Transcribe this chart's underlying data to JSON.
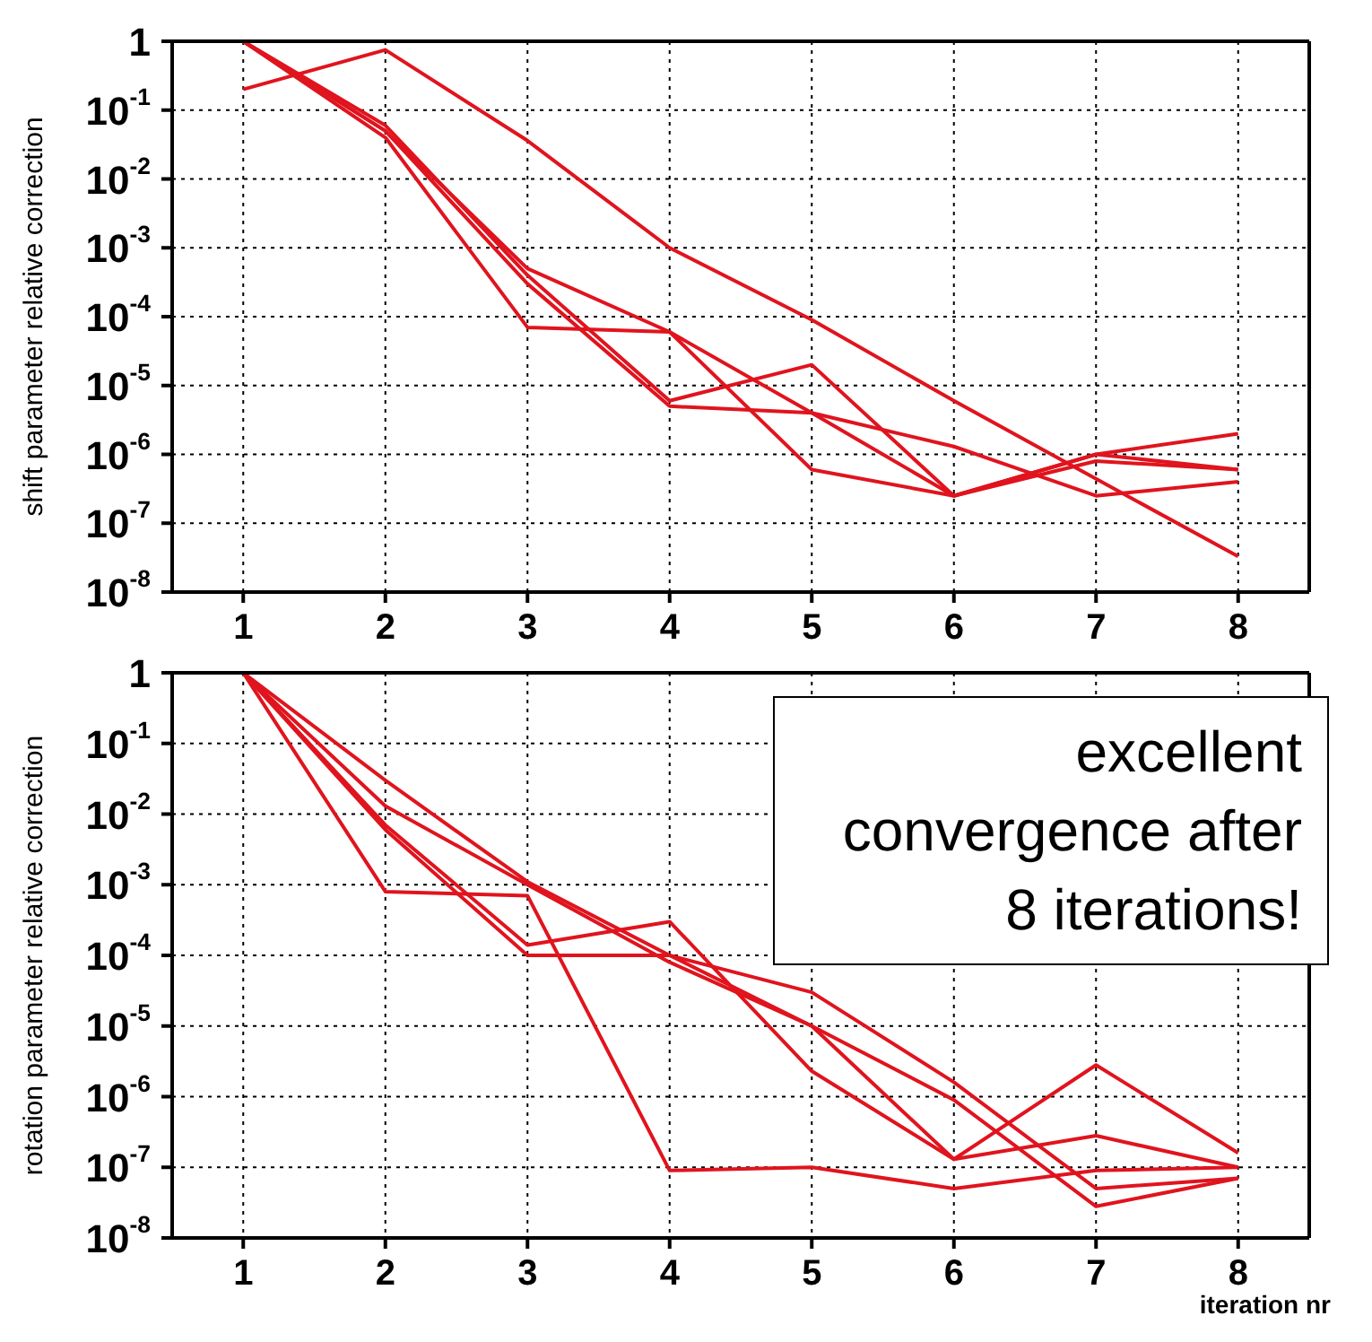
{
  "chart_data": [
    {
      "type": "line",
      "ylabel": "shift parameter relative correction",
      "x": [
        1,
        2,
        3,
        4,
        5,
        6,
        7,
        8
      ],
      "series": [
        {
          "color": "#e0141e",
          "values": [
            0.2,
            0.75,
            0.036,
            0.001,
            9e-05,
            6e-06,
            4.4e-07,
            3.3e-08
          ]
        },
        {
          "color": "#e0141e",
          "values": [
            1,
            0.05,
            0.0005,
            6e-05,
            4e-06,
            2.5e-07,
            1e-06,
            2e-06
          ]
        },
        {
          "color": "#e0141e",
          "values": [
            1,
            0.04,
            7e-05,
            6e-05,
            6e-07,
            2.5e-07,
            8e-07,
            6e-07
          ]
        },
        {
          "color": "#e0141e",
          "values": [
            1,
            0.06,
            0.0004,
            6e-06,
            2e-05,
            2.5e-07,
            1e-06,
            6e-07
          ]
        },
        {
          "color": "#e0141e",
          "values": [
            1,
            0.05,
            0.0003,
            5e-06,
            4e-06,
            1.3e-06,
            2.5e-07,
            4e-07
          ]
        }
      ],
      "xlim": [
        0.5,
        8.5
      ],
      "xticks": [
        1,
        2,
        3,
        4,
        5,
        6,
        7,
        8
      ],
      "ylim": [
        1e-08,
        1
      ],
      "yticks": [
        1,
        {
          "value": 0.1,
          "label": "10$^{-1}$"
        },
        {
          "value": 0.01,
          "label": "10$^{-2}$"
        },
        {
          "value": 0.001,
          "label": "10$^{-3}$"
        },
        {
          "value": 0.0001,
          "label": "10$^{-4}$"
        },
        {
          "value": 1e-05,
          "label": "10$^{-5}$"
        },
        {
          "value": 1e-06,
          "label": "10$^{-6}$"
        },
        {
          "value": 1e-07,
          "label": "10$^{-7}$"
        },
        {
          "value": 1e-08,
          "label": "10$^{-8}$"
        }
      ],
      "log": true,
      "grid": true,
      "marker": "none",
      "line_style": "solid"
    },
    {
      "type": "line",
      "ylabel": "rotation parameter relative correction",
      "xlabel": "iteration nr",
      "x": [
        1,
        2,
        3,
        4,
        5,
        6,
        7,
        8
      ],
      "series": [
        {
          "color": "#e0141e",
          "values": [
            1,
            0.0008,
            0.0007,
            9e-08,
            1e-07,
            5e-08,
            9e-08,
            1e-07
          ]
        },
        {
          "color": "#e0141e",
          "values": [
            1,
            0.03,
            0.0011,
            0.0001,
            3e-05,
            1.6e-06,
            5e-08,
            7e-08
          ]
        },
        {
          "color": "#e0141e",
          "values": [
            1,
            0.007,
            0.00014,
            0.0003,
            2.3e-06,
            1.3e-07,
            2.8e-06,
            1.6e-07
          ]
        },
        {
          "color": "#e0141e",
          "values": [
            1,
            0.013,
            0.001,
            8e-05,
            1e-05,
            9e-07,
            2.8e-08,
            7e-08
          ]
        },
        {
          "color": "#e0141e",
          "values": [
            1,
            0.006,
            0.0001,
            0.0001,
            1e-05,
            1.3e-07,
            2.8e-07,
            1e-07
          ]
        }
      ],
      "xlim": [
        0.5,
        8.5
      ],
      "xticks": [
        1,
        2,
        3,
        4,
        5,
        6,
        7,
        8
      ],
      "ylim": [
        1e-08,
        1
      ],
      "yticks": [
        1,
        {
          "value": 0.1,
          "label": "10$^{-1}$"
        },
        {
          "value": 0.01,
          "label": "10$^{-2}$"
        },
        {
          "value": 0.001,
          "label": "10$^{-3}$"
        },
        {
          "value": 0.0001,
          "label": "10$^{-4}$"
        },
        {
          "value": 1e-05,
          "label": "10$^{-5}$"
        },
        {
          "value": 1e-06,
          "label": "10$^{-6}$"
        },
        {
          "value": 1e-07,
          "label": "10$^{-7}$"
        },
        {
          "value": 1e-08,
          "label": "10$^{-8}$"
        }
      ],
      "log": true,
      "grid": true,
      "marker": "none",
      "line_style": "solid",
      "annotations": [
        "excellent convergence after 8 iterations!"
      ]
    }
  ]
}
